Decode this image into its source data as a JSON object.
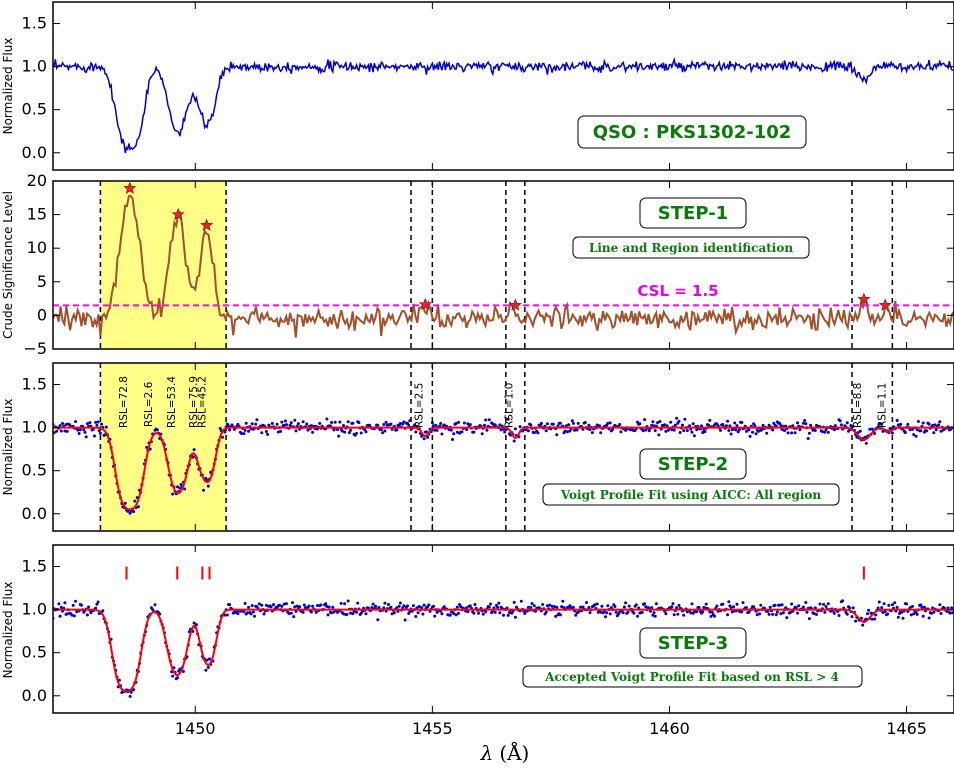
{
  "figure": {
    "xlabel_symbol": "λ",
    "xlabel_unit": "(Å)",
    "x_ticks": [
      "1450",
      "1455",
      "1460",
      "1465"
    ]
  },
  "colors": {
    "flux": "#0000cc",
    "csl_curve": "#a0522d",
    "csl_line": "#ff00ff",
    "fit": "#ff0000",
    "marker": "#ee2222",
    "region": "#ffff88",
    "boxtext": "#0a7a0a"
  },
  "panels": {
    "p1": {
      "ylabel": "Normalized Flux",
      "yticks": [
        "1.5",
        "1.0",
        "0.5",
        "0.0"
      ],
      "box_title": "QSO : PKS1302-102"
    },
    "p2": {
      "ylabel": "Crude Significance Level",
      "yticks": [
        "20",
        "15",
        "10",
        "5",
        "0",
        "−5"
      ],
      "box_title": "STEP-1",
      "box_sub": "Line and Region identification",
      "csl_label": "CSL = 1.5"
    },
    "p3": {
      "ylabel": "Normalized Flux",
      "yticks": [
        "1.5",
        "1.0",
        "0.5",
        "0.0"
      ],
      "box_title": "STEP-2",
      "box_sub": "Voigt Profile Fit using AICC: All region",
      "rsl_labels": [
        "RSL=72.8",
        "RSL=2.6",
        "RSL=53.4",
        "RSL=75.9",
        "RSL=45.2",
        "RSL=2.5",
        "RSL=1.0",
        "RSL=8.8",
        "RSL=1.1"
      ]
    },
    "p4": {
      "ylabel": "Normalized Flux",
      "yticks": [
        "1.5",
        "1.0",
        "0.5",
        "0.0"
      ],
      "box_title": "STEP-3",
      "box_sub": "Accepted Voigt Profile Fit based on RSL > 4"
    }
  },
  "chart_data": [
    {
      "type": "line",
      "panel": "QSO spectrum",
      "xlabel": "λ (Å)",
      "ylabel": "Normalized Flux",
      "xlim": [
        1447.0,
        1466.0
      ],
      "ylim": [
        -0.2,
        1.75
      ],
      "title": "QSO : PKS1302-102",
      "components": [
        {
          "center": 1448.62,
          "depth": 0.95,
          "width": 0.18
        },
        {
          "center": 1449.64,
          "depth": 0.76,
          "width": 0.16
        },
        {
          "center": 1450.24,
          "depth": 0.68,
          "width": 0.15
        },
        {
          "center": 1464.1,
          "depth": 0.14,
          "width": 0.13
        }
      ],
      "continuum": 1.0,
      "noise": 0.03
    },
    {
      "type": "line",
      "panel": "STEP-1",
      "ylabel": "Crude Significance Level",
      "xlim": [
        1447.0,
        1466.0
      ],
      "ylim": [
        -5,
        20
      ],
      "csl_threshold": 1.5,
      "peaks": [
        {
          "x": 1448.62,
          "y": 18.9
        },
        {
          "x": 1449.64,
          "y": 15.0
        },
        {
          "x": 1450.24,
          "y": 13.4
        },
        {
          "x": 1454.85,
          "y": 1.6
        },
        {
          "x": 1456.75,
          "y": 1.5
        },
        {
          "x": 1464.1,
          "y": 2.4
        },
        {
          "x": 1464.55,
          "y": 1.5
        }
      ],
      "regions": [
        [
          1448.0,
          1450.65
        ],
        [
          1454.55,
          1455.0
        ],
        [
          1456.55,
          1456.95
        ],
        [
          1463.85,
          1464.7
        ]
      ]
    },
    {
      "type": "scatter",
      "panel": "STEP-2",
      "ylabel": "Normalized Flux",
      "xlim": [
        1447.0,
        1466.0
      ],
      "ylim": [
        -0.2,
        1.75
      ],
      "fit_components": [
        {
          "center": 1448.62,
          "depth": 0.95,
          "width": 0.18,
          "rsl": 72.8
        },
        {
          "center": 1449.15,
          "depth": 0.02,
          "width": 0.1,
          "rsl": 2.6
        },
        {
          "center": 1449.64,
          "depth": 0.76,
          "width": 0.16,
          "rsl": 53.4
        },
        {
          "center": 1450.1,
          "depth": 0.3,
          "width": 0.1,
          "rsl": 75.9
        },
        {
          "center": 1450.28,
          "depth": 0.6,
          "width": 0.12,
          "rsl": 45.2
        },
        {
          "center": 1454.85,
          "depth": 0.1,
          "width": 0.07,
          "rsl": 2.5
        },
        {
          "center": 1456.75,
          "depth": 0.12,
          "width": 0.07,
          "rsl": 1.0
        },
        {
          "center": 1464.1,
          "depth": 0.14,
          "width": 0.13,
          "rsl": 8.8
        },
        {
          "center": 1464.62,
          "depth": 0.05,
          "width": 0.07,
          "rsl": 1.1
        }
      ]
    },
    {
      "type": "scatter",
      "panel": "STEP-3",
      "xlabel": "λ (Å)",
      "ylabel": "Normalized Flux",
      "xlim": [
        1447.0,
        1466.0
      ],
      "ylim": [
        -0.2,
        1.75
      ],
      "accepted_components": [
        {
          "center": 1448.55,
          "depth": 0.95,
          "width": 0.18
        },
        {
          "center": 1449.62,
          "depth": 0.76,
          "width": 0.16
        },
        {
          "center": 1450.15,
          "depth": 0.25,
          "width": 0.1
        },
        {
          "center": 1450.3,
          "depth": 0.6,
          "width": 0.12
        },
        {
          "center": 1464.1,
          "depth": 0.14,
          "width": 0.13
        }
      ],
      "tick_marks_x": [
        1448.55,
        1449.62,
        1450.15,
        1450.3,
        1464.1
      ],
      "tick_marks_y": [
        1.35,
        1.5
      ]
    }
  ]
}
